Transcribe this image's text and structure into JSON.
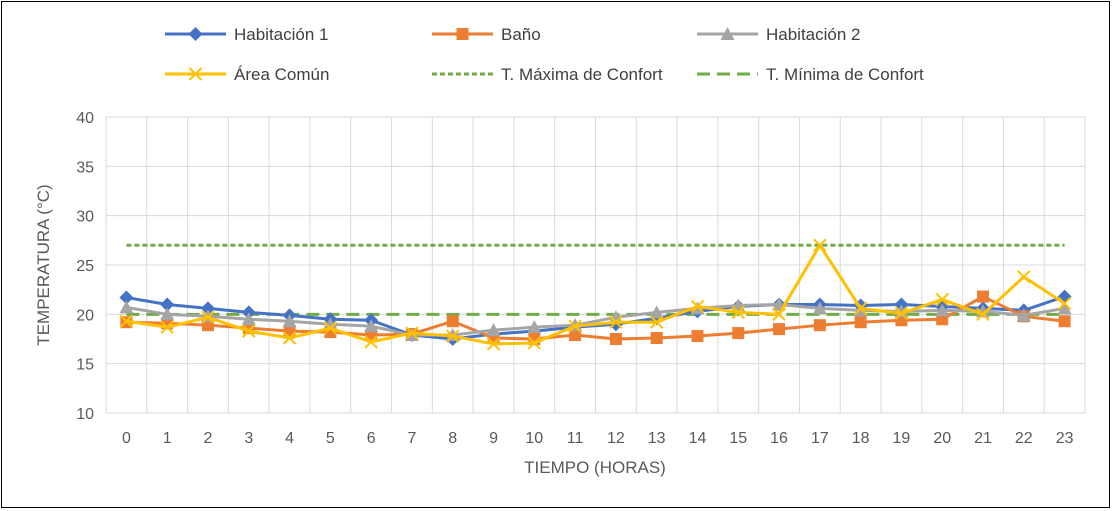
{
  "chart_data": {
    "type": "line",
    "xlabel": "TIEMPO (HORAS)",
    "ylabel": "TEMPERATURA (°C)",
    "ylim": [
      10,
      40
    ],
    "yticks": [
      10,
      15,
      20,
      25,
      30,
      35,
      40
    ],
    "x": [
      "0",
      "1",
      "2",
      "3",
      "4",
      "5",
      "6",
      "7",
      "8",
      "9",
      "10",
      "11",
      "12",
      "13",
      "14",
      "15",
      "16",
      "17",
      "18",
      "19",
      "20",
      "21",
      "22",
      "23"
    ],
    "grid": true,
    "legend_position": "top",
    "series": [
      {
        "name": "Habitación 1",
        "color": "#4472C4",
        "marker": "diamond",
        "dash": "solid",
        "values": [
          21.7,
          21.0,
          20.6,
          20.2,
          19.9,
          19.5,
          19.4,
          17.9,
          17.5,
          18.0,
          18.3,
          18.7,
          19.0,
          19.6,
          20.3,
          20.8,
          21.0,
          21.0,
          20.9,
          21.0,
          20.8,
          20.6,
          20.4,
          21.8
        ]
      },
      {
        "name": "Baño",
        "color": "#ED7D31",
        "marker": "square",
        "dash": "solid",
        "values": [
          19.2,
          19.1,
          18.9,
          18.6,
          18.3,
          18.2,
          17.9,
          18.0,
          19.3,
          17.6,
          17.5,
          17.9,
          17.5,
          17.6,
          17.8,
          18.1,
          18.5,
          18.9,
          19.2,
          19.4,
          19.5,
          21.8,
          19.8,
          19.3
        ]
      },
      {
        "name": "Habitación 2",
        "color": "#A5A5A5",
        "marker": "triangle",
        "dash": "solid",
        "values": [
          20.7,
          20.0,
          19.8,
          19.5,
          19.3,
          19.0,
          18.8,
          17.9,
          17.9,
          18.4,
          18.7,
          18.9,
          19.7,
          20.2,
          20.6,
          20.9,
          21.0,
          20.6,
          20.4,
          20.3,
          20.4,
          20.3,
          19.9,
          20.6
        ]
      },
      {
        "name": "Área Común",
        "color": "#FFC000",
        "marker": "x",
        "dash": "solid",
        "values": [
          19.3,
          18.7,
          19.7,
          18.3,
          17.6,
          18.6,
          17.2,
          18.1,
          17.8,
          17.0,
          17.1,
          18.8,
          19.2,
          19.2,
          20.8,
          20.2,
          20.0,
          27.0,
          20.6,
          20.1,
          21.5,
          20.0,
          23.8,
          21.1
        ]
      },
      {
        "name": "T. Máxima de Confort",
        "color": "#70AD47",
        "marker": "none",
        "dash": "dotted",
        "values": [
          27,
          27,
          27,
          27,
          27,
          27,
          27,
          27,
          27,
          27,
          27,
          27,
          27,
          27,
          27,
          27,
          27,
          27,
          27,
          27,
          27,
          27,
          27,
          27
        ]
      },
      {
        "name": "T. Mínima de Confort",
        "color": "#70AD47",
        "marker": "none",
        "dash": "dashed",
        "values": [
          20,
          20,
          20,
          20,
          20,
          20,
          20,
          20,
          20,
          20,
          20,
          20,
          20,
          20,
          20,
          20,
          20,
          20,
          20,
          20,
          20,
          20,
          20,
          20
        ]
      }
    ]
  }
}
